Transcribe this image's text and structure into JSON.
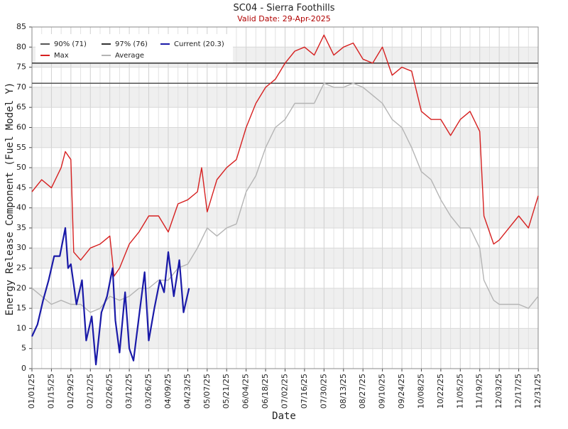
{
  "chart_data": {
    "type": "line",
    "title": "SC04 - Sierra Foothills",
    "subtitle": "Valid Date: 29-Apr-2025",
    "x_label": "Date",
    "y_label": "Energy Release Component (Fuel Model Y)",
    "xlim": [
      "01/01/25",
      "12/31/25"
    ],
    "xticks": [
      "01/01/25",
      "01/15/25",
      "01/29/25",
      "02/12/25",
      "02/26/25",
      "03/12/25",
      "03/26/25",
      "04/09/25",
      "04/23/25",
      "05/07/25",
      "05/21/25",
      "06/04/25",
      "06/18/25",
      "07/02/25",
      "07/16/25",
      "07/30/25",
      "08/13/25",
      "08/27/25",
      "09/10/25",
      "09/24/25",
      "10/08/25",
      "10/22/25",
      "11/05/25",
      "11/19/25",
      "12/03/25",
      "12/17/25",
      "12/31/25"
    ],
    "ylim": [
      0,
      85
    ],
    "yticks": [
      0,
      5,
      10,
      15,
      20,
      25,
      30,
      35,
      40,
      45,
      50,
      55,
      60,
      65,
      70,
      75,
      80,
      85
    ],
    "grid": true,
    "reference_lines": [
      {
        "name": "90% (71)",
        "value": 71,
        "color": "#555555"
      },
      {
        "name": "97% (76)",
        "value": 76,
        "color": "#333333"
      }
    ],
    "series": [
      {
        "name": "Max",
        "color": "#d62020",
        "x": [
          "01/01/25",
          "01/08/25",
          "01/15/25",
          "01/22/25",
          "01/25/25",
          "01/29/25",
          "01/31/25",
          "02/05/25",
          "02/12/25",
          "02/19/25",
          "02/26/25",
          "03/01/25",
          "03/05/25",
          "03/12/25",
          "03/19/25",
          "03/26/25",
          "04/02/25",
          "04/09/25",
          "04/16/25",
          "04/23/25",
          "04/30/25",
          "05/03/25",
          "05/07/25",
          "05/14/25",
          "05/21/25",
          "05/28/25",
          "06/04/25",
          "06/11/25",
          "06/18/25",
          "06/25/25",
          "07/02/25",
          "07/09/25",
          "07/16/25",
          "07/23/25",
          "07/30/25",
          "08/06/25",
          "08/13/25",
          "08/20/25",
          "08/27/25",
          "09/03/25",
          "09/10/25",
          "09/17/25",
          "09/24/25",
          "10/01/25",
          "10/08/25",
          "10/15/25",
          "10/22/25",
          "10/29/25",
          "11/05/25",
          "11/12/25",
          "11/19/25",
          "11/22/25",
          "11/29/25",
          "12/03/25",
          "12/10/25",
          "12/17/25",
          "12/24/25",
          "12/31/25"
        ],
        "values": [
          44,
          47,
          45,
          50,
          54,
          52,
          29,
          27,
          30,
          31,
          33,
          23,
          25,
          31,
          34,
          38,
          38,
          34,
          41,
          42,
          44,
          50,
          39,
          47,
          50,
          52,
          60,
          66,
          70,
          72,
          76,
          79,
          80,
          78,
          83,
          78,
          80,
          81,
          77,
          76,
          80,
          73,
          75,
          74,
          64,
          62,
          62,
          58,
          62,
          64,
          59,
          38,
          31,
          32,
          35,
          38,
          35,
          43
        ]
      },
      {
        "name": "Average",
        "color": "#b4b4b4",
        "x": [
          "01/01/25",
          "01/08/25",
          "01/15/25",
          "01/22/25",
          "01/29/25",
          "02/05/25",
          "02/12/25",
          "02/19/25",
          "02/26/25",
          "03/05/25",
          "03/12/25",
          "03/19/25",
          "03/26/25",
          "04/02/25",
          "04/09/25",
          "04/16/25",
          "04/23/25",
          "04/30/25",
          "05/07/25",
          "05/14/25",
          "05/21/25",
          "05/28/25",
          "06/04/25",
          "06/11/25",
          "06/18/25",
          "06/25/25",
          "07/02/25",
          "07/09/25",
          "07/16/25",
          "07/23/25",
          "07/30/25",
          "08/06/25",
          "08/13/25",
          "08/20/25",
          "08/27/25",
          "09/03/25",
          "09/10/25",
          "09/17/25",
          "09/24/25",
          "10/01/25",
          "10/08/25",
          "10/15/25",
          "10/22/25",
          "10/29/25",
          "11/05/25",
          "11/12/25",
          "11/19/25",
          "11/22/25",
          "11/29/25",
          "12/03/25",
          "12/10/25",
          "12/17/25",
          "12/24/25",
          "12/31/25"
        ],
        "values": [
          20,
          18,
          16,
          17,
          16,
          16,
          14,
          15,
          18,
          17,
          18,
          20,
          20,
          22,
          22,
          25,
          26,
          30,
          35,
          33,
          35,
          36,
          44,
          48,
          55,
          60,
          62,
          66,
          66,
          66,
          71,
          70,
          70,
          71,
          70,
          68,
          66,
          62,
          60,
          55,
          49,
          47,
          42,
          38,
          35,
          35,
          30,
          22,
          17,
          16,
          16,
          16,
          15,
          18
        ]
      },
      {
        "name": "Current (20.3)",
        "color": "#1a1aa8",
        "x": [
          "01/01/25",
          "01/05/25",
          "01/09/25",
          "01/13/25",
          "01/17/25",
          "01/21/25",
          "01/25/25",
          "01/27/25",
          "01/29/25",
          "02/02/25",
          "02/06/25",
          "02/09/25",
          "02/13/25",
          "02/16/25",
          "02/20/25",
          "02/24/25",
          "02/28/25",
          "03/02/25",
          "03/05/25",
          "03/09/25",
          "03/12/25",
          "03/15/25",
          "03/19/25",
          "03/23/25",
          "03/26/25",
          "03/30/25",
          "04/03/25",
          "04/06/25",
          "04/09/25",
          "04/13/25",
          "04/17/25",
          "04/20/25",
          "04/24/25"
        ],
        "values": [
          8,
          11,
          17,
          22,
          28,
          28,
          35,
          25,
          26,
          16,
          22,
          7,
          13,
          1,
          14,
          18,
          25,
          12,
          4,
          19,
          5,
          2,
          13,
          24,
          7,
          15,
          22,
          19,
          29,
          18,
          27,
          14,
          20
        ]
      }
    ]
  }
}
